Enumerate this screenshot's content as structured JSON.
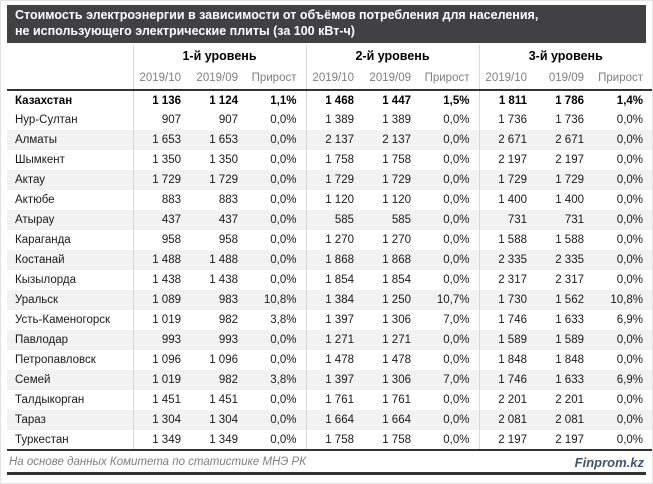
{
  "title": {
    "line1": "Стоимость электроэнергии в зависимости от объёмов потребления для населения,",
    "line2": "не использующего электрические плиты (за 100 кВт-ч)"
  },
  "chart_data": {
    "type": "table",
    "title": "Стоимость электроэнергии в зависимости от объёмов потребления для населения, не использующего электрические плиты (за 100 кВт-ч)",
    "level_headers": [
      "1-й уровень",
      "2-й уровень",
      "3-й уровень"
    ],
    "subheaders": [
      [
        "2019/10",
        "2019/09",
        "Прирост"
      ],
      [
        "2019/10",
        "2019/09",
        "Прирост"
      ],
      [
        "2019/10",
        "019/09",
        "Прирост"
      ]
    ],
    "rows": [
      {
        "name": "Казахстан",
        "values": [
          "1 136",
          "1 124",
          "1,1%",
          "1 468",
          "1 447",
          "1,5%",
          "1 811",
          "1 786",
          "1,4%"
        ]
      },
      {
        "name": "Нур-Султан",
        "values": [
          "907",
          "907",
          "0,0%",
          "1 389",
          "1 389",
          "0,0%",
          "1 736",
          "1 736",
          "0,0%"
        ]
      },
      {
        "name": "Алматы",
        "values": [
          "1 653",
          "1 653",
          "0,0%",
          "2 137",
          "2 137",
          "0,0%",
          "2 671",
          "2 671",
          "0,0%"
        ]
      },
      {
        "name": "Шымкент",
        "values": [
          "1 350",
          "1 350",
          "0,0%",
          "1 758",
          "1 758",
          "0,0%",
          "2 197",
          "2 197",
          "0,0%"
        ]
      },
      {
        "name": "Актау",
        "values": [
          "1 729",
          "1 729",
          "0,0%",
          "1 729",
          "1 729",
          "0,0%",
          "1 729",
          "1 729",
          "0,0%"
        ]
      },
      {
        "name": "Актюбе",
        "values": [
          "883",
          "883",
          "0,0%",
          "1 120",
          "1 120",
          "0,0%",
          "1 400",
          "1 400",
          "0,0%"
        ]
      },
      {
        "name": "Атырау",
        "values": [
          "437",
          "437",
          "0,0%",
          "585",
          "585",
          "0,0%",
          "731",
          "731",
          "0,0%"
        ]
      },
      {
        "name": "Караганда",
        "values": [
          "958",
          "958",
          "0,0%",
          "1 270",
          "1 270",
          "0,0%",
          "1 588",
          "1 588",
          "0,0%"
        ]
      },
      {
        "name": "Костанай",
        "values": [
          "1 488",
          "1 488",
          "0,0%",
          "1 868",
          "1 868",
          "0,0%",
          "2 335",
          "2 335",
          "0,0%"
        ]
      },
      {
        "name": "Кызылорда",
        "values": [
          "1 438",
          "1 438",
          "0,0%",
          "1 854",
          "1 854",
          "0,0%",
          "2 317",
          "2 317",
          "0,0%"
        ]
      },
      {
        "name": "Уральск",
        "values": [
          "1 089",
          "983",
          "10,8%",
          "1 384",
          "1 250",
          "10,7%",
          "1 730",
          "1 562",
          "10,8%"
        ]
      },
      {
        "name": "Усть-Каменогорск",
        "values": [
          "1 019",
          "982",
          "3,8%",
          "1 397",
          "1 306",
          "7,0%",
          "1 746",
          "1 633",
          "6,9%"
        ]
      },
      {
        "name": "Павлодар",
        "values": [
          "993",
          "993",
          "0,0%",
          "1 271",
          "1 271",
          "0,0%",
          "1 589",
          "1 589",
          "0,0%"
        ]
      },
      {
        "name": "Петропавловск",
        "values": [
          "1 096",
          "1 096",
          "0,0%",
          "1 478",
          "1 478",
          "0,0%",
          "1 848",
          "1 848",
          "0,0%"
        ]
      },
      {
        "name": "Семей",
        "values": [
          "1 019",
          "982",
          "3,8%",
          "1 397",
          "1 306",
          "7,0%",
          "1 746",
          "1 633",
          "6,9%"
        ]
      },
      {
        "name": "Талдыкорган",
        "values": [
          "1 451",
          "1 451",
          "0,0%",
          "1 761",
          "1 761",
          "0,0%",
          "2 201",
          "2 201",
          "0,0%"
        ]
      },
      {
        "name": "Тараз",
        "values": [
          "1 304",
          "1 304",
          "0,0%",
          "1 664",
          "1 664",
          "0,0%",
          "2 081",
          "2 081",
          "0,0%"
        ]
      },
      {
        "name": "Туркестан",
        "values": [
          "1 349",
          "1 349",
          "0,0%",
          "1 758",
          "1 758",
          "0,0%",
          "2 197",
          "2 197",
          "0,0%"
        ]
      }
    ]
  },
  "footer": {
    "source": "На основе данных Комитета по статистике МНЭ РК",
    "brand": "Finprom.kz"
  },
  "colors": {
    "title_bar_bg": "#414144",
    "title_text": "#ffffff",
    "stripe": "#f2f2f2",
    "separator": "#d9d9d9",
    "rule": "#333333",
    "subheader_text": "#7f7f7f",
    "brand_text": "#44546a"
  }
}
